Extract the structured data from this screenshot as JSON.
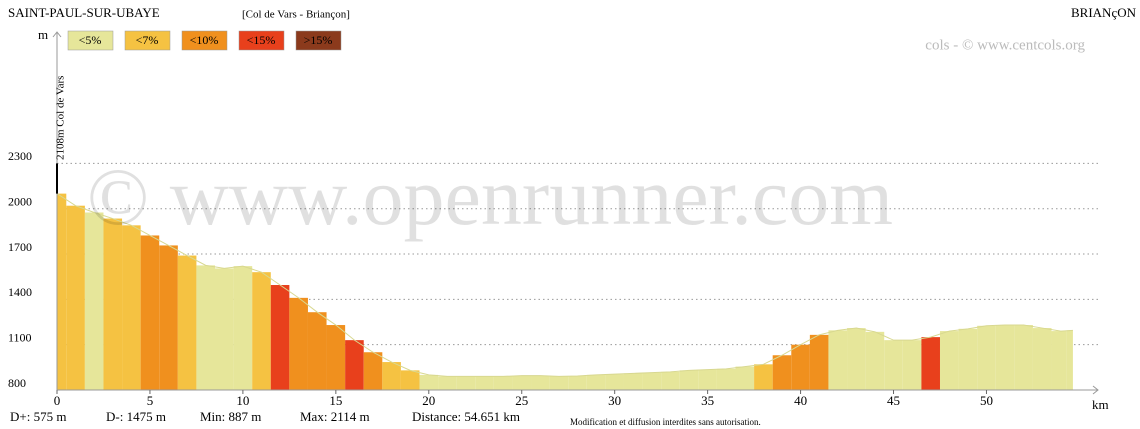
{
  "chart_data": {
    "type": "elevation-profile",
    "title": "SAINT-PAUL-SUR-UBAYE",
    "subtitle": "[Col de Vars - Briançon]",
    "end_label": "BRIANçON",
    "credit": "cols - © www.centcols.org",
    "watermark": "© www.openrunner.com",
    "annotation": "2108m Col de Vars",
    "y_label": "m",
    "x_label": "km",
    "legend": [
      {
        "label": "<5%",
        "color": "#e6e69a"
      },
      {
        "label": "<7%",
        "color": "#f5c242"
      },
      {
        "label": "<10%",
        "color": "#f0901e"
      },
      {
        "label": "<15%",
        "color": "#e8401c"
      },
      {
        "label": ">15%",
        "color": "#8b3a1c"
      }
    ],
    "stats": [
      "D+: 575 m",
      "D-: 1475 m",
      "Min: 887 m",
      "Max: 2114 m",
      "Distance: 54.651 km"
    ],
    "notice": "Modification et diffusion interdites sans autorisation.",
    "x": [
      0,
      1,
      2,
      3,
      4,
      5,
      6,
      7,
      8,
      9,
      10,
      11,
      12,
      13,
      14,
      15,
      16,
      17,
      18,
      19,
      20,
      21,
      22,
      23,
      24,
      25,
      26,
      27,
      28,
      29,
      30,
      31,
      32,
      33,
      34,
      35,
      36,
      37,
      38,
      39,
      40,
      41,
      42,
      43,
      44,
      45,
      46,
      47,
      48,
      49,
      50,
      51,
      52,
      53,
      54,
      54.651
    ],
    "values": [
      2100,
      2020,
      1975,
      1935,
      1890,
      1823,
      1757,
      1690,
      1625,
      1605,
      1620,
      1580,
      1495,
      1410,
      1315,
      1230,
      1130,
      1050,
      985,
      930,
      900,
      890,
      890,
      890,
      890,
      895,
      895,
      890,
      893,
      900,
      905,
      910,
      915,
      920,
      930,
      935,
      940,
      955,
      970,
      1030,
      1100,
      1165,
      1195,
      1210,
      1185,
      1130,
      1130,
      1150,
      1190,
      1205,
      1225,
      1230,
      1230,
      1210,
      1190,
      1195
    ],
    "colors": [
      "#f5c242",
      "#f5c242",
      "#e6e69a",
      "#f5c242",
      "#f5c242",
      "#f0901e",
      "#f0901e",
      "#f5c242",
      "#e6e69a",
      "#e6e69a",
      "#e6e69a",
      "#f5c242",
      "#e8401c",
      "#f0901e",
      "#f0901e",
      "#f0901e",
      "#e8401c",
      "#f0901e",
      "#f5c242",
      "#f5c242",
      "#e6e69a",
      "#e6e69a",
      "#e6e69a",
      "#e6e69a",
      "#e6e69a",
      "#e6e69a",
      "#e6e69a",
      "#e6e69a",
      "#e6e69a",
      "#e6e69a",
      "#e6e69a",
      "#e6e69a",
      "#e6e69a",
      "#e6e69a",
      "#e6e69a",
      "#e6e69a",
      "#e6e69a",
      "#e6e69a",
      "#f5c242",
      "#f0901e",
      "#f0901e",
      "#f0901e",
      "#e6e69a",
      "#e6e69a",
      "#e6e69a",
      "#e6e69a",
      "#e6e69a",
      "#e8401c",
      "#e6e69a",
      "#e6e69a",
      "#e6e69a",
      "#e6e69a",
      "#e6e69a",
      "#e6e69a",
      "#e6e69a",
      "#e6e69a"
    ],
    "xlim": [
      0,
      56
    ],
    "xticks": [
      0,
      5,
      10,
      15,
      20,
      25,
      30,
      35,
      40,
      45,
      50
    ],
    "ylim": [
      800,
      3150
    ],
    "yticks": [
      800,
      1100,
      1400,
      1700,
      2000,
      2300
    ],
    "grid": true
  }
}
